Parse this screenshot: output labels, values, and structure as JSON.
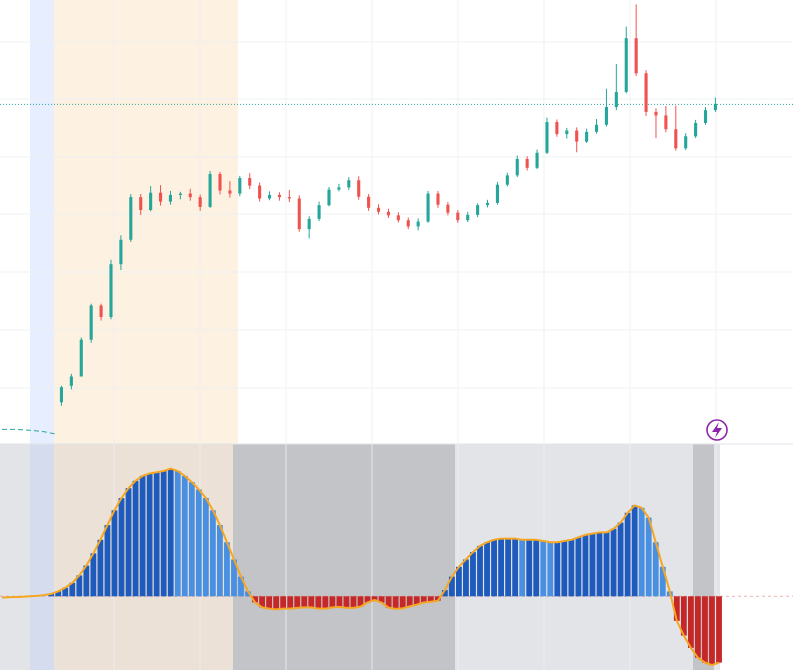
{
  "colors": {
    "up_candle": "#26a69a",
    "down_candle": "#ef5350",
    "hist_pos_dark": "#1e5bbd",
    "hist_pos_light": "#4a90e2",
    "hist_neg": "#c62828",
    "hist_line": "#f5a623",
    "price_line": "#26a69a",
    "alert_icon": "#8e24aa",
    "zone_blue": "#e6eeff",
    "zone_orange": "#fdf1e2",
    "zone_gray_light": "#e3e4e7",
    "zone_gray_dark": "#c3c4c8"
  },
  "alert_icon": "lightning-bolt-icon",
  "chart_data": [
    {
      "type": "candlestick",
      "ylim": [
        0,
        100
      ],
      "x": [
        1,
        158
      ],
      "reference_line": 76.5,
      "pre_listing_line": [
        {
          "x": 1,
          "y": 3.3
        },
        {
          "x": 4,
          "y": 3.3
        },
        {
          "x": 7,
          "y": 3.1
        },
        {
          "x": 10,
          "y": 2.8
        },
        {
          "x": 13,
          "y": 2.2
        }
      ],
      "candles": [
        [
          9.4,
          12.8,
          8.6,
          13.1
        ],
        [
          13.1,
          15.2,
          12.3,
          15.8
        ],
        [
          15.2,
          23.5,
          15.2,
          24.0
        ],
        [
          23.5,
          31.2,
          22.8,
          31.6
        ],
        [
          31.2,
          28.6,
          27.8,
          31.6
        ],
        [
          28.6,
          40.5,
          28.1,
          41.5
        ],
        [
          40.5,
          46.0,
          39.2,
          47.0
        ],
        [
          46.0,
          55.6,
          45.5,
          56.3
        ],
        [
          55.6,
          52.7,
          51.6,
          56.3
        ],
        [
          52.7,
          56.6,
          52.4,
          58.1
        ],
        [
          56.6,
          54.6,
          53.7,
          58.3
        ],
        [
          54.6,
          56.1,
          53.9,
          57.0
        ],
        [
          56.1,
          56.4,
          55.1,
          56.8
        ],
        [
          56.4,
          55.6,
          54.8,
          57.5
        ],
        [
          55.6,
          53.4,
          52.5,
          56.2
        ],
        [
          53.4,
          60.8,
          53.2,
          61.5
        ],
        [
          60.8,
          57.1,
          56.2,
          61.3
        ],
        [
          57.1,
          56.4,
          55.5,
          59.2
        ],
        [
          56.4,
          59.9,
          55.8,
          60.4
        ],
        [
          59.9,
          58.2,
          57.4,
          61.0
        ],
        [
          58.2,
          55.3,
          54.6,
          58.9
        ],
        [
          55.3,
          56.1,
          54.9,
          56.9
        ],
        [
          56.1,
          55.6,
          54.8,
          56.7
        ],
        [
          55.6,
          55.3,
          54.5,
          57.2
        ],
        [
          55.3,
          48.4,
          47.8,
          56.0
        ],
        [
          48.4,
          50.7,
          46.3,
          51.3
        ],
        [
          50.7,
          53.8,
          50.2,
          54.6
        ],
        [
          53.8,
          57.3,
          53.5,
          57.9
        ],
        [
          57.3,
          57.8,
          56.9,
          58.6
        ],
        [
          57.8,
          59.4,
          57.2,
          60.1
        ],
        [
          59.4,
          55.7,
          55.0,
          60.3
        ],
        [
          55.7,
          53.2,
          52.5,
          56.3
        ],
        [
          53.2,
          52.3,
          51.7,
          54.0
        ],
        [
          52.3,
          51.5,
          50.9,
          53.0
        ],
        [
          51.5,
          50.4,
          49.9,
          52.2
        ],
        [
          50.4,
          49.0,
          48.4,
          51.0
        ],
        [
          49.0,
          50.1,
          48.1,
          50.8
        ],
        [
          50.1,
          56.4,
          49.8,
          57.0
        ],
        [
          56.4,
          53.9,
          53.2,
          57.0
        ],
        [
          53.9,
          52.1,
          51.5,
          54.5
        ],
        [
          52.1,
          50.4,
          49.8,
          52.7
        ],
        [
          50.4,
          51.6,
          50.0,
          52.3
        ],
        [
          51.6,
          53.8,
          51.1,
          54.2
        ],
        [
          53.8,
          54.3,
          53.3,
          55.0
        ],
        [
          54.3,
          58.4,
          53.9,
          59.0
        ],
        [
          58.4,
          60.5,
          58.0,
          61.1
        ],
        [
          60.5,
          64.2,
          60.1,
          65.0
        ],
        [
          64.2,
          62.2,
          61.6,
          64.8
        ],
        [
          62.2,
          65.6,
          61.9,
          66.3
        ],
        [
          65.6,
          72.5,
          65.3,
          73.5
        ],
        [
          72.5,
          69.8,
          69.2,
          73.1
        ],
        [
          69.8,
          70.6,
          68.8,
          71.2
        ],
        [
          70.6,
          68.1,
          65.7,
          71.3
        ],
        [
          68.1,
          70.3,
          67.8,
          71.0
        ],
        [
          70.3,
          71.9,
          69.9,
          73.2
        ],
        [
          71.9,
          75.9,
          71.5,
          80.0
        ],
        [
          75.9,
          79.3,
          75.2,
          85.6
        ],
        [
          79.3,
          91.4,
          79.0,
          94.0
        ],
        [
          91.4,
          83.5,
          82.9,
          99.0
        ],
        [
          83.5,
          74.8,
          73.9,
          84.2
        ],
        [
          74.8,
          74.0,
          68.9,
          75.6
        ],
        [
          74.0,
          70.9,
          70.2,
          76.1
        ],
        [
          70.9,
          66.6,
          66.1,
          76.2
        ],
        [
          66.6,
          69.3,
          66.2,
          70.0
        ],
        [
          69.3,
          72.3,
          68.9,
          73.0
        ],
        [
          72.3,
          75.2,
          71.9,
          75.9
        ],
        [
          75.2,
          76.6,
          74.8,
          78.0
        ]
      ]
    },
    {
      "type": "bar",
      "ylim": [
        -30,
        62
      ],
      "baseline": 0,
      "values": [
        -0.5,
        -0.4,
        -0.3,
        -0.2,
        0.0,
        0.2,
        0.5,
        1.0,
        2.0,
        3.5,
        5.5,
        8.5,
        12.5,
        17.5,
        23.0,
        29.0,
        35.0,
        40.0,
        44.0,
        47.0,
        49.0,
        50.0,
        50.5,
        51.0,
        52.0,
        51.0,
        49.0,
        46.5,
        43.5,
        40.0,
        35.0,
        29.0,
        22.0,
        15.0,
        8.0,
        2.0,
        -2.5,
        -4.5,
        -5.0,
        -5.3,
        -5.0,
        -5.0,
        -4.7,
        -4.5,
        -4.5,
        -5.0,
        -5.0,
        -4.5,
        -4.3,
        -4.7,
        -4.7,
        -4.2,
        -2.5,
        -1.5,
        -2.6,
        -4.6,
        -5.1,
        -4.9,
        -4.1,
        -3.4,
        -2.5,
        -2.2,
        -1.8,
        2.5,
        8.0,
        12.0,
        15.0,
        18.0,
        20.5,
        22.0,
        23.0,
        23.5,
        23.5,
        23.5,
        23.0,
        23.0,
        23.0,
        22.5,
        22.0,
        22.0,
        22.5,
        23.0,
        24.0,
        25.0,
        25.5,
        26.0,
        26.0,
        27.5,
        30.0,
        34.0,
        37.0,
        36.0,
        32.0,
        22.0,
        12.0,
        2.0,
        -10.0,
        -16.0,
        -21.0,
        -25.0,
        -27.0,
        -28.0,
        -27.0
      ]
    }
  ]
}
